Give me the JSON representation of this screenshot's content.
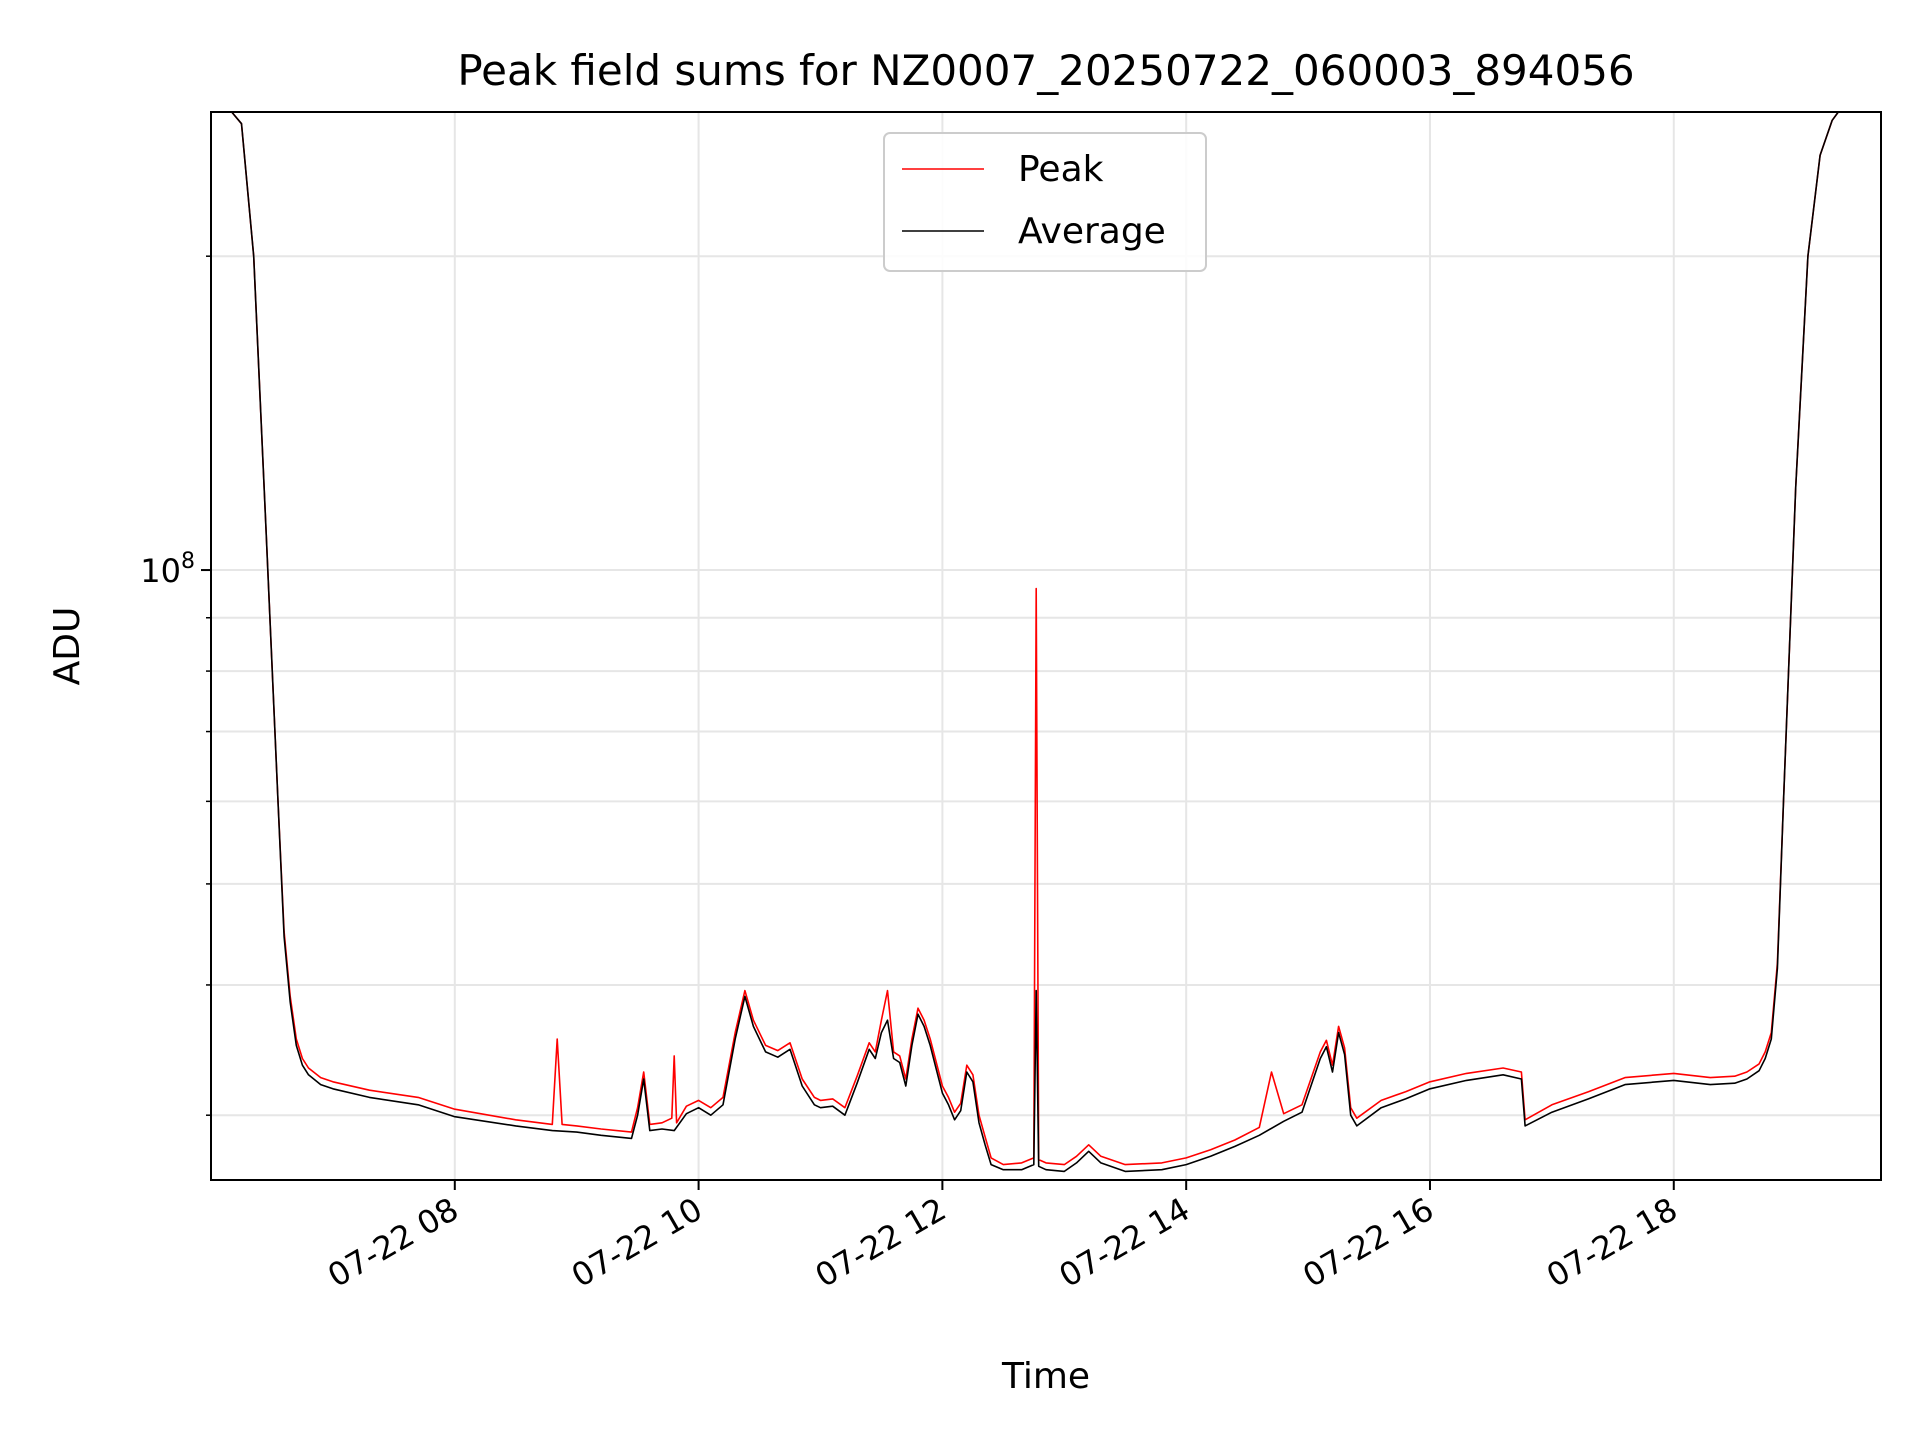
{
  "chart_data": {
    "type": "line",
    "title": "Peak field sums for NZ0007_20250722_060003_894056",
    "xlabel": "Time",
    "ylabel": "ADU",
    "yscale": "log",
    "x_unit": "2025-07-22 time of day (hours)",
    "xlim": [
      6.0,
      19.7
    ],
    "ylim": [
      26000000,
      275000000
    ],
    "x_ticks": [
      {
        "value": 8,
        "label": "07-22 08"
      },
      {
        "value": 10,
        "label": "07-22 10"
      },
      {
        "value": 12,
        "label": "07-22 12"
      },
      {
        "value": 14,
        "label": "07-22 14"
      },
      {
        "value": 16,
        "label": "07-22 16"
      },
      {
        "value": 18,
        "label": "07-22 18"
      }
    ],
    "y_major_ticks": [
      {
        "value": 100000000,
        "base": "10",
        "exp": "8"
      }
    ],
    "y_minor_ticks": [
      30000000,
      40000000,
      50000000,
      60000000,
      70000000,
      80000000,
      90000000,
      200000000
    ],
    "grid": true,
    "legend_position": "top-center",
    "series": [
      {
        "name": "Peak",
        "color": "#ff0000",
        "x": [
          6.0,
          6.17,
          6.25,
          6.35,
          6.45,
          6.55,
          6.6,
          6.65,
          6.7,
          6.75,
          6.8,
          6.9,
          7.0,
          7.3,
          7.7,
          8.0,
          8.5,
          8.8,
          8.84,
          8.88,
          9.0,
          9.2,
          9.45,
          9.5,
          9.55,
          9.6,
          9.7,
          9.78,
          9.8,
          9.82,
          9.9,
          10.0,
          10.1,
          10.2,
          10.3,
          10.38,
          10.45,
          10.55,
          10.65,
          10.75,
          10.85,
          10.95,
          11.0,
          11.1,
          11.2,
          11.3,
          11.4,
          11.45,
          11.5,
          11.55,
          11.6,
          11.65,
          11.7,
          11.75,
          11.8,
          11.85,
          11.9,
          11.95,
          12.0,
          12.05,
          12.1,
          12.15,
          12.2,
          12.25,
          12.3,
          12.35,
          12.4,
          12.5,
          12.65,
          12.75,
          12.77,
          12.79,
          12.85,
          13.0,
          13.1,
          13.2,
          13.3,
          13.5,
          13.8,
          14.0,
          14.2,
          14.4,
          14.6,
          14.7,
          14.8,
          14.95,
          15.1,
          15.15,
          15.2,
          15.25,
          15.3,
          15.35,
          15.4,
          15.6,
          15.8,
          16.0,
          16.3,
          16.6,
          16.75,
          16.78,
          17.0,
          17.3,
          17.6,
          18.0,
          18.3,
          18.5,
          18.6,
          18.7,
          18.75,
          18.8,
          18.85,
          18.9,
          19.0,
          19.1,
          19.2,
          19.3,
          19.35,
          19.4,
          19.7
        ],
        "values": [
          275000000,
          275000000,
          268000000,
          200000000,
          110000000,
          60000000,
          45000000,
          39000000,
          35500000,
          34000000,
          33300000,
          32600000,
          32300000,
          31700000,
          31200000,
          30400000,
          29700000,
          29400000,
          35500000,
          29400000,
          29300000,
          29100000,
          28900000,
          30500000,
          33000000,
          29400000,
          29500000,
          29800000,
          34200000,
          29500000,
          30600000,
          31000000,
          30500000,
          31200000,
          36000000,
          39500000,
          37000000,
          35000000,
          34600000,
          35200000,
          32500000,
          31200000,
          31000000,
          31100000,
          30500000,
          32700000,
          35200000,
          34500000,
          37000000,
          39500000,
          34500000,
          34200000,
          32500000,
          35500000,
          38000000,
          37000000,
          35500000,
          33700000,
          32000000,
          31200000,
          30200000,
          30800000,
          33500000,
          32800000,
          30000000,
          28600000,
          27300000,
          26900000,
          27000000,
          27300000,
          96000000,
          27200000,
          27000000,
          26900000,
          27400000,
          28100000,
          27400000,
          26900000,
          27000000,
          27300000,
          27800000,
          28400000,
          29200000,
          33000000,
          30100000,
          30700000,
          34500000,
          35400000,
          33500000,
          36500000,
          34800000,
          30500000,
          29800000,
          31000000,
          31600000,
          32300000,
          32900000,
          33300000,
          33000000,
          29700000,
          30700000,
          31600000,
          32600000,
          32900000,
          32600000,
          32700000,
          33000000,
          33600000,
          34500000,
          36000000,
          42000000,
          60000000,
          120000000,
          200000000,
          250000000,
          270000000,
          275000000,
          275000000,
          275000000
        ]
      },
      {
        "name": "Average",
        "color": "#000000",
        "x": [
          6.0,
          6.17,
          6.25,
          6.35,
          6.45,
          6.55,
          6.6,
          6.65,
          6.7,
          6.75,
          6.8,
          6.9,
          7.0,
          7.3,
          7.7,
          8.0,
          8.5,
          8.8,
          9.0,
          9.2,
          9.45,
          9.5,
          9.55,
          9.6,
          9.7,
          9.8,
          9.9,
          10.0,
          10.1,
          10.2,
          10.3,
          10.38,
          10.45,
          10.55,
          10.65,
          10.75,
          10.85,
          10.95,
          11.0,
          11.1,
          11.2,
          11.3,
          11.4,
          11.45,
          11.5,
          11.55,
          11.6,
          11.65,
          11.7,
          11.75,
          11.8,
          11.85,
          11.9,
          11.95,
          12.0,
          12.05,
          12.1,
          12.15,
          12.2,
          12.25,
          12.3,
          12.35,
          12.4,
          12.5,
          12.65,
          12.75,
          12.77,
          12.79,
          12.85,
          13.0,
          13.1,
          13.2,
          13.3,
          13.5,
          13.8,
          14.0,
          14.2,
          14.4,
          14.6,
          14.8,
          14.95,
          15.1,
          15.15,
          15.2,
          15.25,
          15.3,
          15.35,
          15.4,
          15.6,
          15.8,
          16.0,
          16.3,
          16.6,
          16.75,
          16.78,
          17.0,
          17.3,
          17.6,
          18.0,
          18.3,
          18.5,
          18.6,
          18.7,
          18.75,
          18.8,
          18.85,
          18.9,
          19.0,
          19.1,
          19.2,
          19.3,
          19.35,
          19.4,
          19.7
        ],
        "values": [
          275000000,
          275000000,
          268000000,
          200000000,
          110000000,
          60000000,
          44500000,
          38500000,
          35000000,
          33500000,
          32800000,
          32100000,
          31800000,
          31200000,
          30700000,
          29900000,
          29300000,
          29000000,
          28900000,
          28700000,
          28500000,
          30000000,
          32500000,
          29000000,
          29100000,
          29000000,
          30100000,
          30500000,
          30000000,
          30700000,
          35500000,
          39000000,
          36500000,
          34500000,
          34100000,
          34700000,
          32000000,
          30700000,
          30500000,
          30600000,
          30000000,
          32200000,
          34700000,
          34000000,
          36000000,
          37000000,
          34000000,
          33700000,
          32000000,
          35000000,
          37500000,
          36500000,
          35000000,
          33200000,
          31500000,
          30700000,
          29700000,
          30300000,
          33000000,
          32300000,
          29500000,
          28100000,
          26900000,
          26600000,
          26600000,
          26900000,
          39500000,
          26800000,
          26600000,
          26500000,
          27000000,
          27700000,
          27000000,
          26500000,
          26600000,
          26900000,
          27400000,
          28000000,
          28700000,
          29600000,
          30200000,
          34000000,
          34900000,
          33000000,
          36000000,
          34300000,
          30000000,
          29300000,
          30500000,
          31100000,
          31800000,
          32400000,
          32800000,
          32500000,
          29300000,
          30200000,
          31100000,
          32100000,
          32400000,
          32100000,
          32200000,
          32500000,
          33100000,
          34000000,
          35500000,
          41500000,
          60000000,
          120000000,
          200000000,
          250000000,
          270000000,
          275000000,
          275000000,
          275000000
        ]
      }
    ]
  }
}
